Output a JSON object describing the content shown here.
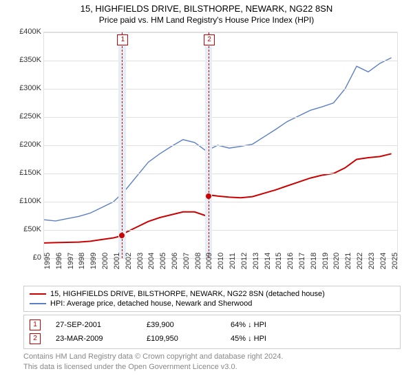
{
  "title": "15, HIGHFIELDS DRIVE, BILSTHORPE, NEWARK, NG22 8SN",
  "subtitle": "Price paid vs. HM Land Registry's House Price Index (HPI)",
  "chart": {
    "type": "line",
    "background_color": "#ffffff",
    "grid_color": "#e0e0e0",
    "band_color": "#e7edf5",
    "vline_color": "#cc0000",
    "xlim": [
      1995,
      2025.5
    ],
    "ylim": [
      0,
      400000
    ],
    "ytick_step": 50000,
    "yticks": [
      "£0",
      "£50K",
      "£100K",
      "£150K",
      "£200K",
      "£250K",
      "£300K",
      "£350K",
      "£400K"
    ],
    "xticks": [
      "1995",
      "1996",
      "1997",
      "1998",
      "1999",
      "2000",
      "2001",
      "2002",
      "2003",
      "2004",
      "2005",
      "2006",
      "2007",
      "2008",
      "2009",
      "2010",
      "2011",
      "2012",
      "2013",
      "2014",
      "2015",
      "2016",
      "2017",
      "2018",
      "2019",
      "2020",
      "2021",
      "2022",
      "2023",
      "2024",
      "2025"
    ],
    "bands": [
      [
        2001.4,
        2002.1
      ],
      [
        2008.9,
        2009.5
      ]
    ],
    "vlines": [
      2001.74,
      2009.22
    ],
    "markers": [
      {
        "label": "1",
        "x": 2001.74,
        "color": "#cc0000"
      },
      {
        "label": "2",
        "x": 2009.22,
        "color": "#cc0000"
      }
    ],
    "series": [
      {
        "name": "property",
        "color": "#cc0000",
        "width": 2,
        "data": [
          [
            1995,
            27000
          ],
          [
            1996,
            27500
          ],
          [
            1997,
            28000
          ],
          [
            1998,
            28500
          ],
          [
            1999,
            30000
          ],
          [
            2000,
            33000
          ],
          [
            2001,
            36000
          ],
          [
            2001.74,
            39900
          ],
          [
            2002,
            45000
          ],
          [
            2003,
            55000
          ],
          [
            2004,
            65000
          ],
          [
            2005,
            72000
          ],
          [
            2006,
            77000
          ],
          [
            2007,
            82000
          ],
          [
            2008,
            82000
          ],
          [
            2009,
            75000
          ],
          [
            2009.22,
            109950
          ],
          [
            2009.3,
            112000
          ],
          [
            2010,
            110000
          ],
          [
            2011,
            108000
          ],
          [
            2012,
            107000
          ],
          [
            2013,
            109000
          ],
          [
            2014,
            115000
          ],
          [
            2015,
            121000
          ],
          [
            2016,
            128000
          ],
          [
            2017,
            135000
          ],
          [
            2018,
            142000
          ],
          [
            2019,
            147000
          ],
          [
            2020,
            150000
          ],
          [
            2021,
            160000
          ],
          [
            2022,
            175000
          ],
          [
            2023,
            178000
          ],
          [
            2024,
            180000
          ],
          [
            2025,
            185000
          ]
        ],
        "dots": [
          [
            2001.74,
            39900
          ],
          [
            2009.22,
            109950
          ]
        ]
      },
      {
        "name": "hpi",
        "color": "#5b7fc7",
        "width": 1.4,
        "data": [
          [
            1995,
            68000
          ],
          [
            1996,
            66000
          ],
          [
            1997,
            70000
          ],
          [
            1998,
            74000
          ],
          [
            1999,
            80000
          ],
          [
            2000,
            90000
          ],
          [
            2001,
            100000
          ],
          [
            2002,
            120000
          ],
          [
            2003,
            145000
          ],
          [
            2004,
            170000
          ],
          [
            2005,
            185000
          ],
          [
            2006,
            198000
          ],
          [
            2007,
            210000
          ],
          [
            2008,
            205000
          ],
          [
            2009,
            190000
          ],
          [
            2010,
            200000
          ],
          [
            2011,
            195000
          ],
          [
            2012,
            198000
          ],
          [
            2013,
            202000
          ],
          [
            2014,
            215000
          ],
          [
            2015,
            228000
          ],
          [
            2016,
            242000
          ],
          [
            2017,
            252000
          ],
          [
            2018,
            262000
          ],
          [
            2019,
            268000
          ],
          [
            2020,
            275000
          ],
          [
            2021,
            300000
          ],
          [
            2022,
            340000
          ],
          [
            2023,
            330000
          ],
          [
            2024,
            345000
          ],
          [
            2025,
            355000
          ]
        ]
      }
    ]
  },
  "legend": {
    "items": [
      {
        "color": "#cc0000",
        "label": "15, HIGHFIELDS DRIVE, BILSTHORPE, NEWARK, NG22 8SN (detached house)"
      },
      {
        "color": "#5b7fc7",
        "label": "HPI: Average price, detached house, Newark and Sherwood"
      }
    ]
  },
  "events": [
    {
      "marker": "1",
      "color": "#cc0000",
      "date": "27-SEP-2001",
      "price": "£39,900",
      "delta": "64% ↓ HPI"
    },
    {
      "marker": "2",
      "color": "#cc0000",
      "date": "23-MAR-2009",
      "price": "£109,950",
      "delta": "45% ↓ HPI"
    }
  ],
  "footer": {
    "line1": "Contains HM Land Registry data © Crown copyright and database right 2024.",
    "line2": "This data is licensed under the Open Government Licence v3.0."
  }
}
